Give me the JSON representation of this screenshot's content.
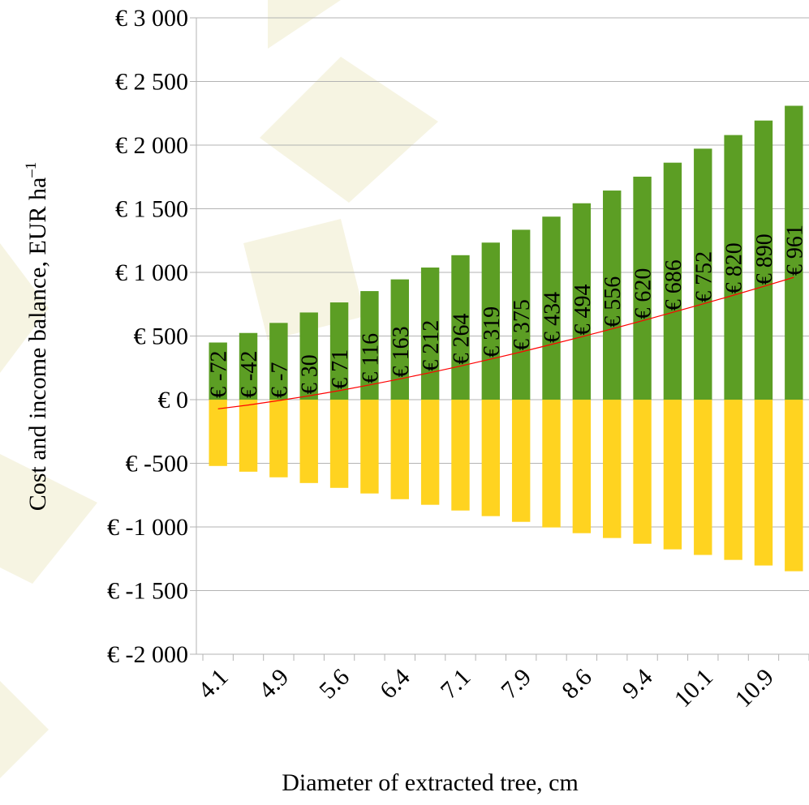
{
  "chart_data": {
    "type": "bar",
    "x_label": "Diameter of extracted tree, cm",
    "y_label": {
      "text": "Cost and income balance, EUR ha",
      "superscript": "–1"
    },
    "categories": [
      "4.1",
      null,
      "4.9",
      null,
      "5.6",
      null,
      "6.4",
      null,
      "7.1",
      null,
      "7.9",
      null,
      "8.6",
      null,
      "9.4",
      null,
      "10.1",
      null,
      "10.9",
      null
    ],
    "series": [
      {
        "type": "bar",
        "color": "#5c9e24",
        "values": [
          449,
          524,
          603,
          685,
          764,
          853,
          945,
          1038,
          1135,
          1234,
          1335,
          1438,
          1543,
          1643,
          1752,
          1862,
          1972,
          2079,
          2193,
          2309
        ]
      },
      {
        "type": "bar",
        "color": "#ffd320",
        "values": [
          -521,
          -566,
          -610,
          -655,
          -693,
          -737,
          -782,
          -826,
          -871,
          -915,
          -960,
          -1004,
          -1049,
          -1087,
          -1132,
          -1176,
          -1220,
          -1259,
          -1303,
          -1348
        ]
      },
      {
        "type": "line",
        "color": "#ff0000",
        "values": [
          -72,
          -42,
          -7,
          30,
          71,
          116,
          163,
          212,
          264,
          319,
          375,
          434,
          494,
          556,
          620,
          686,
          752,
          820,
          890,
          961
        ],
        "value_labels": [
          "€ -72",
          "€ -42",
          "€ -7",
          "€ 30",
          "€ 71",
          "€ 116",
          "€ 163",
          "€ 212",
          "€ 264",
          "€ 319",
          "€ 375",
          "€ 434",
          "€ 494",
          "€ 556",
          "€ 620",
          "€ 686",
          "€ 752",
          "€ 820",
          "€ 890",
          "€ 961"
        ]
      }
    ],
    "ylim": [
      -2000,
      3000
    ],
    "yticks": [
      {
        "value": -2000,
        "label": "€ -2 000"
      },
      {
        "value": -1500,
        "label": "€ -1 500"
      },
      {
        "value": -1000,
        "label": "€ -1 000"
      },
      {
        "value": -500,
        "label": "€ -500"
      },
      {
        "value": 0,
        "label": "€ 0"
      },
      {
        "value": 500,
        "label": "€ 500"
      },
      {
        "value": 1000,
        "label": "€ 1 000"
      },
      {
        "value": 1500,
        "label": "€ 1 500"
      },
      {
        "value": 2000,
        "label": "€ 2 000"
      },
      {
        "value": 2500,
        "label": "€ 2 500"
      },
      {
        "value": 3000,
        "label": "€ 3 000"
      }
    ],
    "grid": true,
    "negative_tick_color": "#ff0000"
  }
}
